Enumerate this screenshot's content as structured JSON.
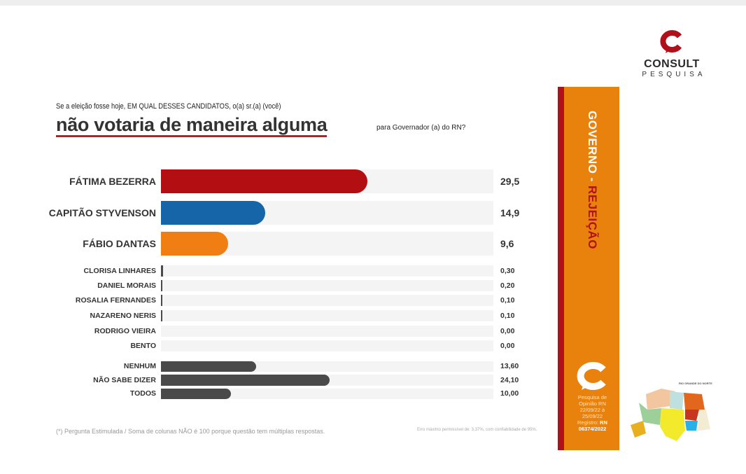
{
  "header": {
    "logo_name": "CONSULT",
    "logo_sub": "PESQUISA",
    "question_line1": "Se a eleição fosse hoje, EM QUAL DESSES CANDIDATOS, o(a) sr.(a) (você)",
    "question_highlight": "não votaria de maneira alguma",
    "question_line3": "para Governador (a) do RN?"
  },
  "side_panel": {
    "title_a": "GOVERNO - ",
    "title_b": "REJEIÇÃO",
    "info_lines": [
      "Pesquisa de",
      "Opinião RN",
      "22/09/22 à",
      "25/09/22",
      "Registro: "
    ],
    "registro": "RN 06374/2022",
    "map_title": "RIO GRANDE DO NORTE"
  },
  "footer": {
    "note": "(*) Pergunta Estimulada / Soma de colunas NÃO é 100 porque questão tem múltiplas respostas.",
    "margin": "Erro máximo permissível de: 3,37%, com confiabilidade de 95%."
  },
  "colors": {
    "red": "#b30e12",
    "blue": "#1565a8",
    "orange": "#f07e12",
    "gray": "#4a4a4a",
    "panel": "#e8820c"
  },
  "chart_data": {
    "type": "bar",
    "orientation": "horizontal",
    "title": "não votaria de maneira alguma",
    "xlim": [
      0,
      47.5
    ],
    "categories": [
      "FÁTIMA BEZERRA",
      "CAPITÃO STYVENSON",
      "FÁBIO DANTAS",
      "CLORISA LINHARES",
      "DANIEL MORAIS",
      "ROSALIA FERNANDES",
      "NAZARENO NERIS",
      "RODRIGO VIEIRA",
      "BENTO",
      "NENHUM",
      "NÃO SABE DIZER",
      "TODOS"
    ],
    "values": [
      29.5,
      14.9,
      9.6,
      0.3,
      0.2,
      0.1,
      0.1,
      0.0,
      0.0,
      13.6,
      24.1,
      10.0
    ],
    "labels": [
      "29,5",
      "14,9",
      "9,6",
      "0,30",
      "0,20",
      "0,10",
      "0,10",
      "0,00",
      "0,00",
      "13,60",
      "24,10",
      "10,00"
    ],
    "bar_colors": [
      "#b30e12",
      "#1565a8",
      "#f07e12",
      "#4a4a4a",
      "#4a4a4a",
      "#4a4a4a",
      "#4a4a4a",
      "#4a4a4a",
      "#4a4a4a",
      "#4a4a4a",
      "#4a4a4a",
      "#4a4a4a"
    ]
  }
}
